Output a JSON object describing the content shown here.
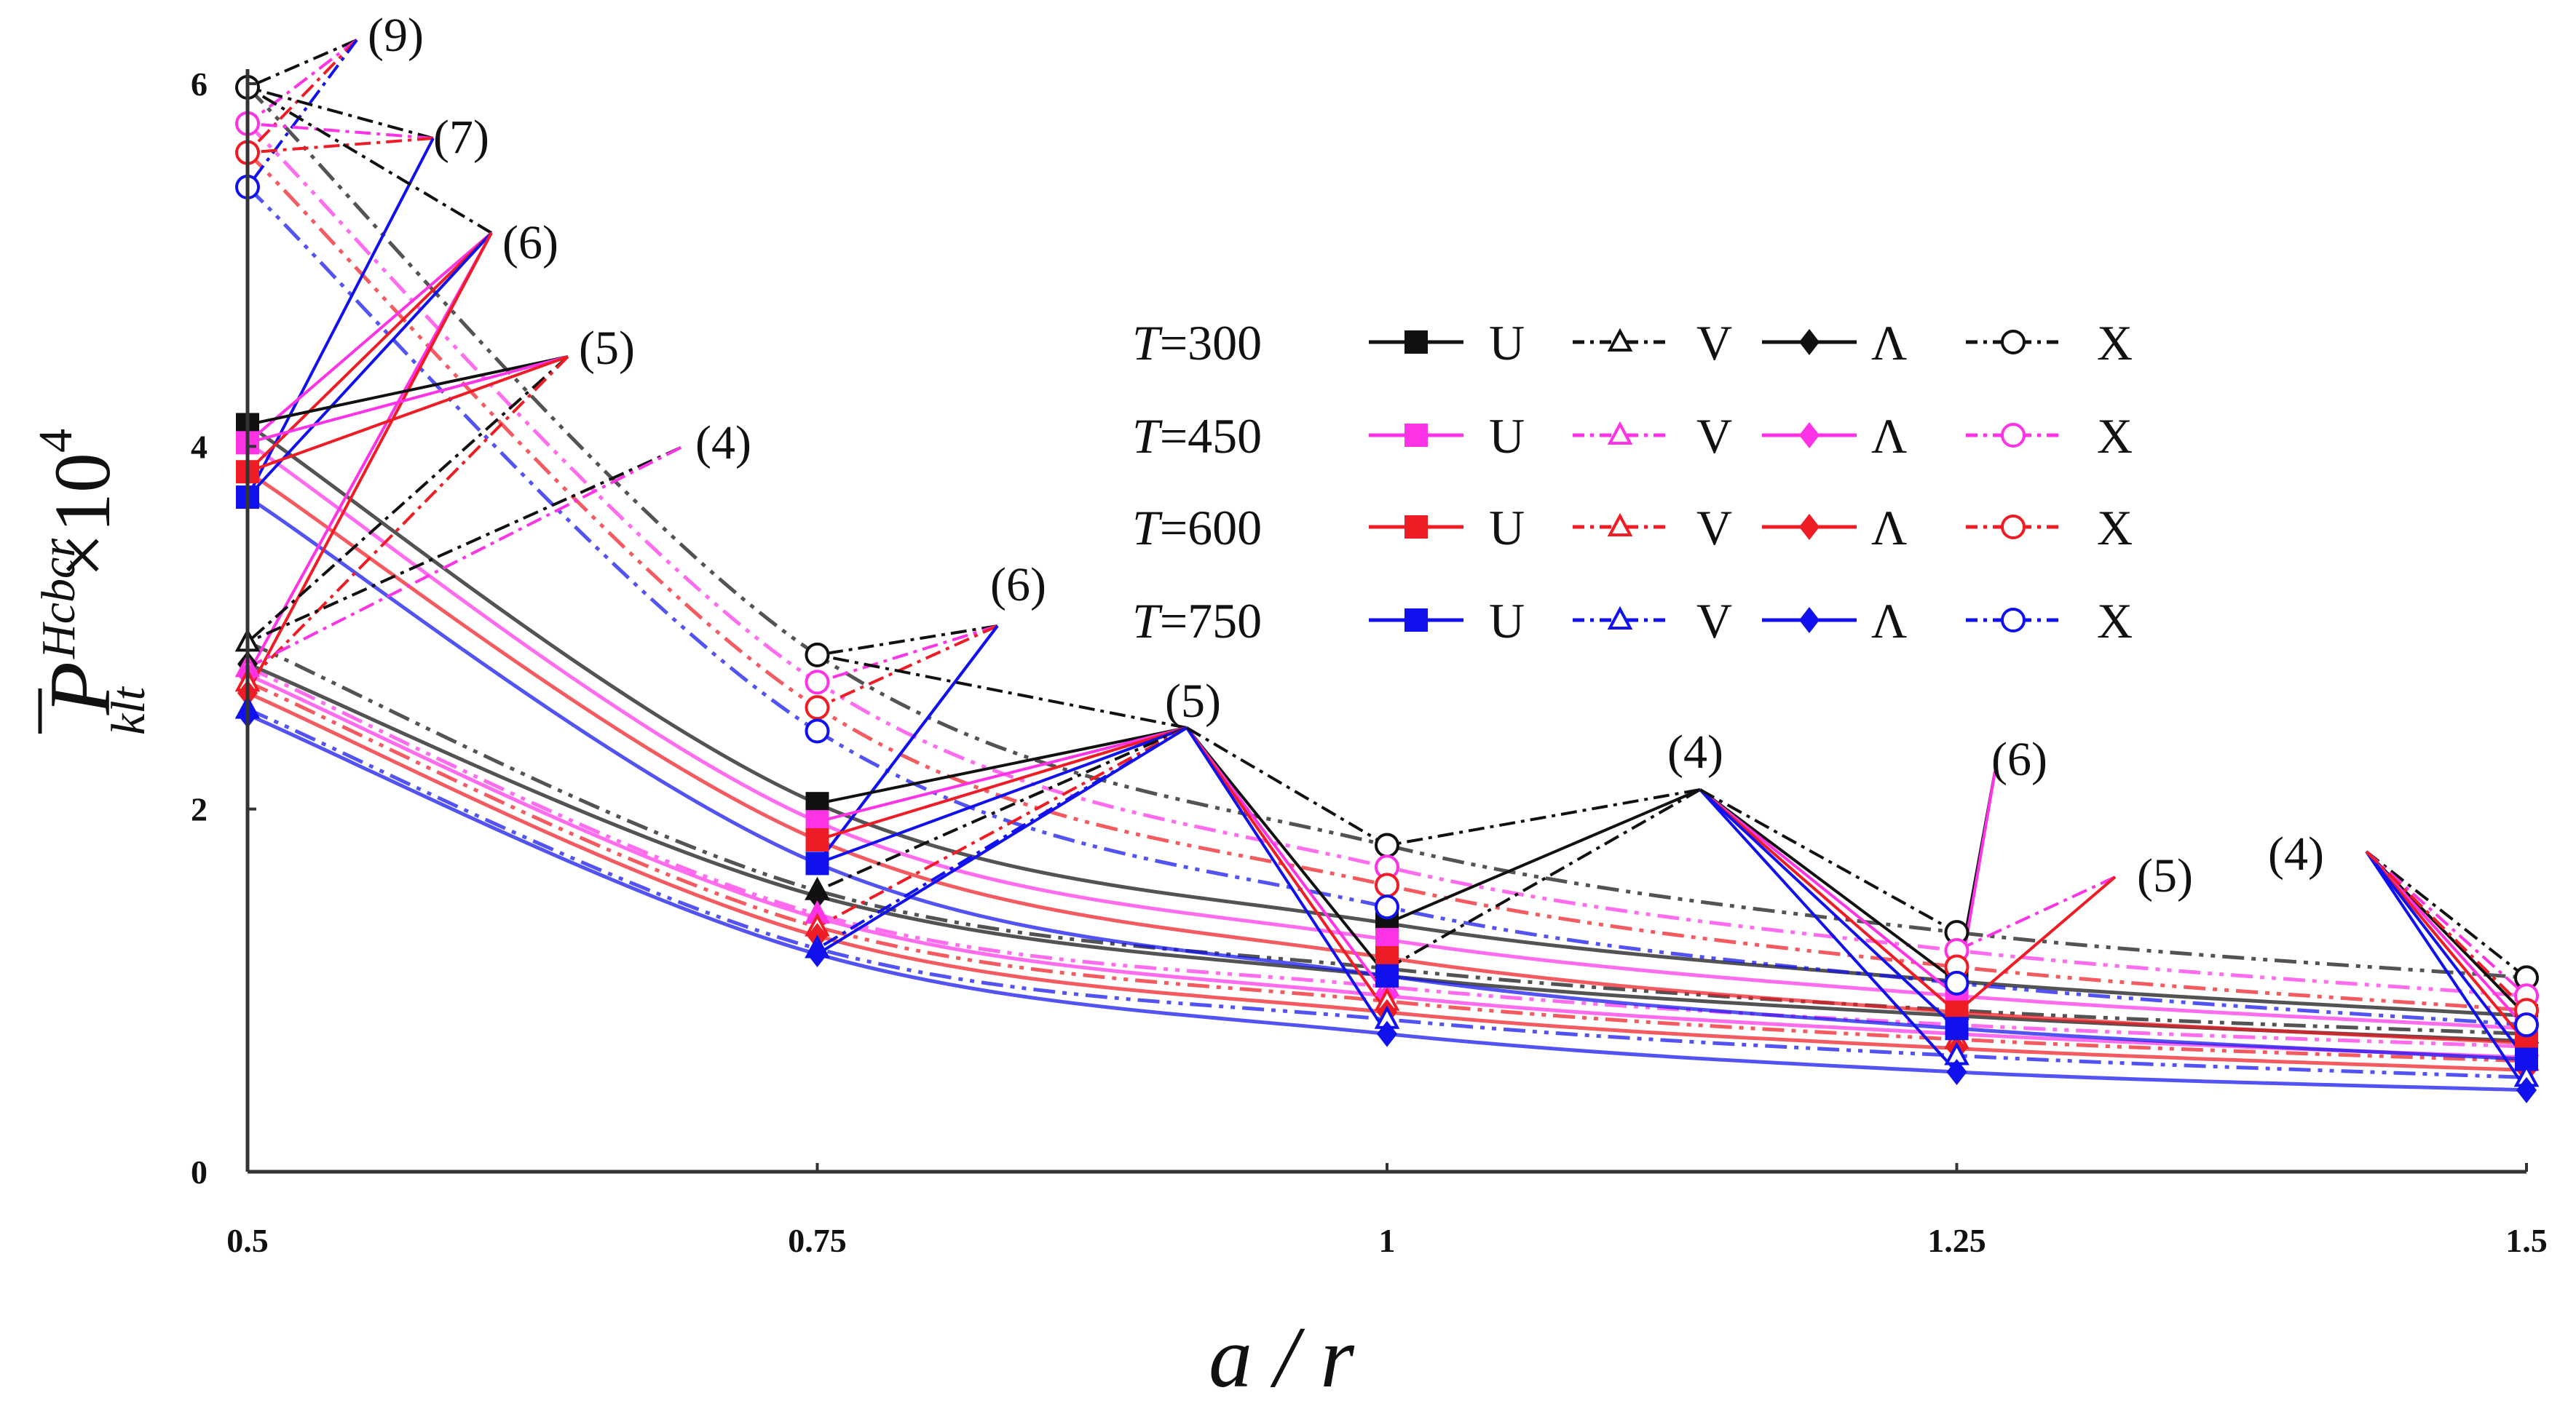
{
  "chart_data": {
    "type": "line",
    "title": "",
    "xlabel": "a / r",
    "ylabel": {
      "base": "P",
      "superscript": "Hcbcr",
      "subscript": "klt",
      "multiplier": "×10",
      "power": "4"
    },
    "x": [
      0.5,
      0.75,
      1,
      1.25,
      1.5
    ],
    "xticks": [
      "0.5",
      "0.75",
      "1",
      "1.25",
      "1.5"
    ],
    "yticks": [
      "0",
      "2",
      "4",
      "6"
    ],
    "xlim": [
      0.5,
      1.5
    ],
    "ylim": [
      0,
      6
    ],
    "temperatures": [
      {
        "label": "T",
        "value": "=300",
        "color": "#111111"
      },
      {
        "label": "T",
        "value": "=450",
        "color": "#ff33e6"
      },
      {
        "label": "T",
        "value": "=600",
        "color": "#ee1c24"
      },
      {
        "label": "T",
        "value": "=750",
        "color": "#1111ee"
      }
    ],
    "models": [
      {
        "name": "U",
        "marker": "square",
        "dash": "solid"
      },
      {
        "name": "V",
        "marker": "triangle",
        "dash": "dashdotdot"
      },
      {
        "name": "Λ",
        "marker": "diamond",
        "dash": "solid"
      },
      {
        "name": "X",
        "marker": "circle",
        "dash": "dashdotdot"
      }
    ],
    "series": [
      {
        "name": "T=300 U",
        "values": [
          4.12,
          2.03,
          1.37,
          1.05,
          0.86
        ]
      },
      {
        "name": "T=300 V",
        "values": [
          2.92,
          1.55,
          1.12,
          0.89,
          0.76
        ]
      },
      {
        "name": "T=300 Λ",
        "values": [
          2.8,
          1.52,
          1.08,
          0.86,
          0.72
        ]
      },
      {
        "name": "T=300 X",
        "values": [
          5.98,
          2.85,
          1.8,
          1.32,
          1.07
        ]
      },
      {
        "name": "T=450 U",
        "values": [
          4.02,
          1.93,
          1.28,
          0.97,
          0.79
        ]
      },
      {
        "name": "T=450 V",
        "values": [
          2.78,
          1.42,
          1.02,
          0.81,
          0.69
        ]
      },
      {
        "name": "T=450 Λ",
        "values": [
          2.74,
          1.4,
          0.97,
          0.76,
          0.63
        ]
      },
      {
        "name": "T=450 X",
        "values": [
          5.78,
          2.7,
          1.68,
          1.22,
          0.97
        ]
      },
      {
        "name": "T=600 U",
        "values": [
          3.86,
          1.83,
          1.18,
          0.88,
          0.71
        ]
      },
      {
        "name": "T=600 V",
        "values": [
          2.7,
          1.35,
          0.94,
          0.73,
          0.61
        ]
      },
      {
        "name": "T=600 Λ",
        "values": [
          2.64,
          1.3,
          0.88,
          0.68,
          0.56
        ]
      },
      {
        "name": "T=600 X",
        "values": [
          5.62,
          2.56,
          1.58,
          1.13,
          0.89
        ]
      },
      {
        "name": "T=750 U",
        "values": [
          3.72,
          1.7,
          1.08,
          0.79,
          0.62
        ]
      },
      {
        "name": "T=750 V",
        "values": [
          2.55,
          1.23,
          0.84,
          0.64,
          0.52
        ]
      },
      {
        "name": "T=750 Λ",
        "values": [
          2.52,
          1.2,
          0.76,
          0.55,
          0.45
        ]
      },
      {
        "name": "T=750 X",
        "values": [
          5.43,
          2.43,
          1.46,
          1.04,
          0.81
        ]
      }
    ],
    "annotations": [
      {
        "text": "(9)"
      },
      {
        "text": "(7)"
      },
      {
        "text": "(6)"
      },
      {
        "text": "(5)"
      },
      {
        "text": "(4)"
      },
      {
        "text": "(6)"
      },
      {
        "text": "(5)"
      },
      {
        "text": "(4)"
      },
      {
        "text": "(6)"
      },
      {
        "text": "(5)"
      },
      {
        "text": "(4)"
      }
    ]
  }
}
